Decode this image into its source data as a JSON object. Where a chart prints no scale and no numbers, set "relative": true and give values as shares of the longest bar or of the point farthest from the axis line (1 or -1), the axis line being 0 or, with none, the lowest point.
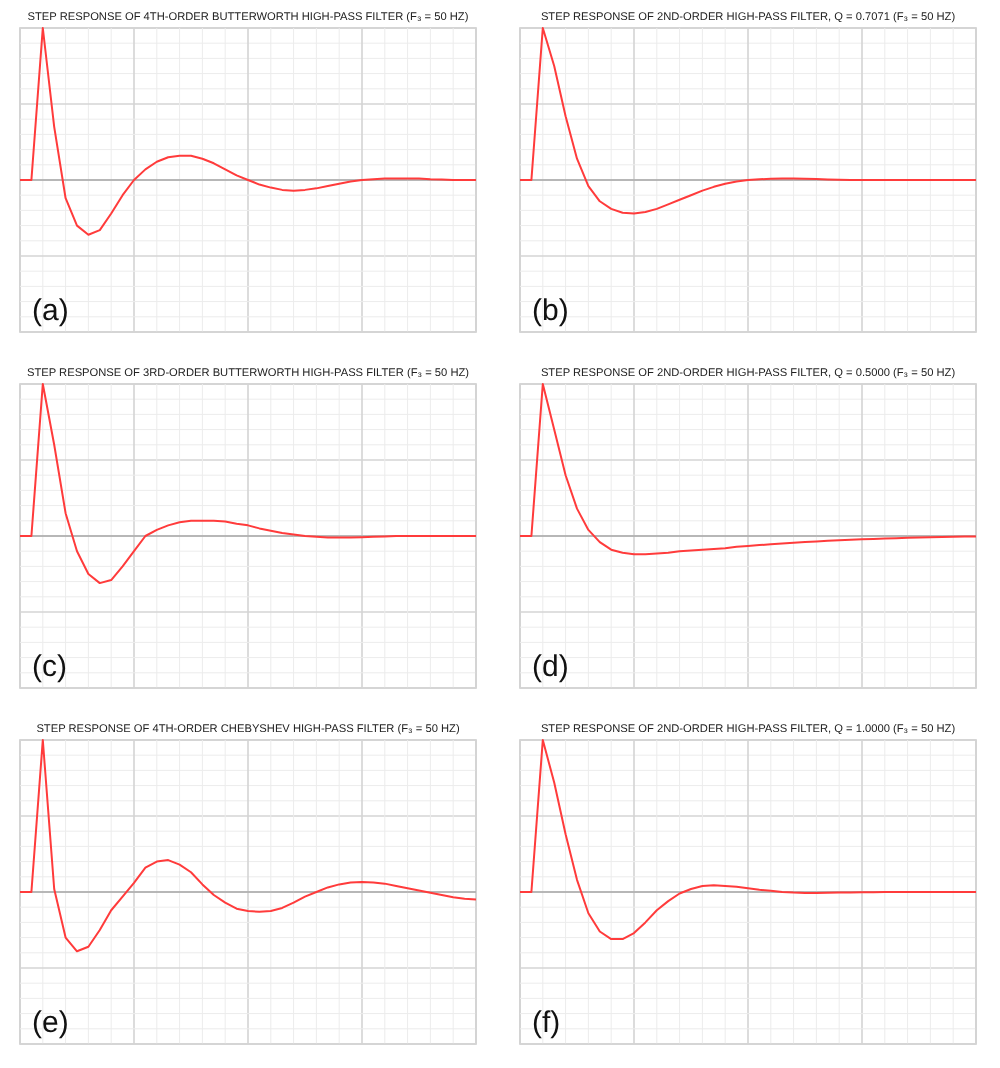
{
  "chart_data": [
    {
      "type": "line",
      "relative": true,
      "title": "STEP RESPONSE OF 4TH-ORDER BUTTERWORTH HIGH-PASS FILTER (F₃ = 50 HZ)",
      "annotations": [
        "(a)"
      ],
      "grid": true,
      "marker": "none",
      "line_style": "solid",
      "categories": [
        null,
        null,
        null,
        null,
        null,
        null,
        null,
        null,
        null,
        null,
        null,
        null,
        null,
        null,
        null,
        null,
        null,
        null,
        null,
        null,
        null,
        null,
        null,
        null,
        null,
        null,
        null,
        null,
        null,
        null,
        null,
        null,
        null,
        null,
        null,
        null,
        null,
        null,
        null,
        null,
        null
      ],
      "series": [
        {
          "color": "#ff3b3b",
          "values": [
            0,
            0,
            1,
            0.35,
            -0.12,
            -0.3,
            -0.36,
            -0.33,
            -0.22,
            -0.1,
            0,
            0.07,
            0.12,
            0.15,
            0.16,
            0.16,
            0.14,
            0.11,
            0.07,
            0.03,
            0,
            -0.03,
            -0.05,
            -0.065,
            -0.07,
            -0.065,
            -0.055,
            -0.04,
            -0.025,
            -0.01,
            0,
            0.005,
            0.01,
            0.01,
            0.01,
            0.01,
            0.005,
            0.003,
            0,
            0,
            0
          ]
        }
      ]
    },
    {
      "type": "line",
      "relative": true,
      "title": "STEP RESPONSE OF 2ND-ORDER HIGH-PASS FILTER, Q = 0.7071 (F₃ = 50 HZ)",
      "annotations": [
        "(b)"
      ],
      "grid": true,
      "marker": "none",
      "line_style": "solid",
      "categories": [
        null,
        null,
        null,
        null,
        null,
        null,
        null,
        null,
        null,
        null,
        null,
        null,
        null,
        null,
        null,
        null,
        null,
        null,
        null,
        null,
        null,
        null,
        null,
        null,
        null,
        null,
        null,
        null,
        null,
        null,
        null,
        null,
        null,
        null,
        null,
        null,
        null,
        null,
        null,
        null,
        null
      ],
      "series": [
        {
          "color": "#ff3b3b",
          "values": [
            0,
            0,
            1,
            0.75,
            0.42,
            0.14,
            -0.04,
            -0.14,
            -0.19,
            -0.215,
            -0.22,
            -0.21,
            -0.19,
            -0.16,
            -0.13,
            -0.1,
            -0.07,
            -0.045,
            -0.025,
            -0.01,
            0,
            0.005,
            0.008,
            0.01,
            0.01,
            0.008,
            0.006,
            0.004,
            0.002,
            0,
            0,
            0,
            0,
            0,
            0,
            0,
            0,
            0,
            0,
            0,
            0
          ]
        }
      ]
    },
    {
      "type": "line",
      "relative": true,
      "title": "STEP RESPONSE OF 3RD-ORDER BUTTERWORTH HIGH-PASS FILTER (F₃ = 50 HZ)",
      "annotations": [
        "(c)"
      ],
      "grid": true,
      "marker": "none",
      "line_style": "solid",
      "categories": [
        null,
        null,
        null,
        null,
        null,
        null,
        null,
        null,
        null,
        null,
        null,
        null,
        null,
        null,
        null,
        null,
        null,
        null,
        null,
        null,
        null,
        null,
        null,
        null,
        null,
        null,
        null,
        null,
        null,
        null,
        null,
        null,
        null,
        null,
        null,
        null,
        null,
        null,
        null,
        null,
        null
      ],
      "series": [
        {
          "color": "#ff3b3b",
          "values": [
            0,
            0,
            1,
            0.6,
            0.15,
            -0.1,
            -0.25,
            -0.31,
            -0.29,
            -0.2,
            -0.1,
            0,
            0.04,
            0.07,
            0.09,
            0.1,
            0.1,
            0.1,
            0.095,
            0.08,
            0.07,
            0.05,
            0.035,
            0.02,
            0.01,
            0,
            -0.005,
            -0.01,
            -0.01,
            -0.01,
            -0.008,
            -0.005,
            -0.003,
            0,
            0,
            0,
            0,
            0,
            0,
            0,
            0
          ]
        }
      ]
    },
    {
      "type": "line",
      "relative": true,
      "title": "STEP RESPONSE OF 2ND-ORDER HIGH-PASS FILTER, Q = 0.5000 (F₃ = 50 HZ)",
      "annotations": [
        "(d)"
      ],
      "grid": true,
      "marker": "none",
      "line_style": "solid",
      "categories": [
        null,
        null,
        null,
        null,
        null,
        null,
        null,
        null,
        null,
        null,
        null,
        null,
        null,
        null,
        null,
        null,
        null,
        null,
        null,
        null,
        null,
        null,
        null,
        null,
        null,
        null,
        null,
        null,
        null,
        null,
        null,
        null,
        null,
        null,
        null,
        null,
        null,
        null,
        null,
        null,
        null
      ],
      "series": [
        {
          "color": "#ff3b3b",
          "values": [
            0,
            0,
            1,
            0.7,
            0.4,
            0.18,
            0.04,
            -0.04,
            -0.09,
            -0.11,
            -0.12,
            -0.12,
            -0.115,
            -0.11,
            -0.1,
            -0.095,
            -0.09,
            -0.085,
            -0.08,
            -0.07,
            -0.065,
            -0.06,
            -0.055,
            -0.05,
            -0.045,
            -0.04,
            -0.036,
            -0.032,
            -0.028,
            -0.025,
            -0.022,
            -0.019,
            -0.016,
            -0.014,
            -0.012,
            -0.01,
            -0.008,
            -0.006,
            -0.005,
            -0.004,
            -0.003
          ]
        }
      ]
    },
    {
      "type": "line",
      "relative": true,
      "title": "STEP RESPONSE OF 4TH-ORDER CHEBYSHEV HIGH-PASS FILTER (F₃ = 50 HZ)",
      "annotations": [
        "(e)"
      ],
      "grid": true,
      "marker": "none",
      "line_style": "solid",
      "categories": [
        null,
        null,
        null,
        null,
        null,
        null,
        null,
        null,
        null,
        null,
        null,
        null,
        null,
        null,
        null,
        null,
        null,
        null,
        null,
        null,
        null,
        null,
        null,
        null,
        null,
        null,
        null,
        null,
        null,
        null,
        null,
        null,
        null,
        null,
        null,
        null,
        null,
        null,
        null,
        null,
        null
      ],
      "series": [
        {
          "color": "#ff3b3b",
          "values": [
            0,
            0,
            1,
            0.02,
            -0.3,
            -0.39,
            -0.36,
            -0.25,
            -0.12,
            -0.03,
            0.06,
            0.16,
            0.2,
            0.21,
            0.18,
            0.13,
            0.05,
            -0.02,
            -0.07,
            -0.11,
            -0.125,
            -0.13,
            -0.125,
            -0.105,
            -0.07,
            -0.03,
            0,
            0.03,
            0.05,
            0.062,
            0.066,
            0.063,
            0.055,
            0.04,
            0.025,
            0.01,
            -0.005,
            -0.02,
            -0.035,
            -0.045,
            -0.05
          ]
        }
      ]
    },
    {
      "type": "line",
      "relative": true,
      "title": "STEP RESPONSE OF 2ND-ORDER HIGH-PASS FILTER, Q = 1.0000 (F₃ = 50 HZ)",
      "annotations": [
        "(f)"
      ],
      "grid": true,
      "marker": "none",
      "line_style": "solid",
      "categories": [
        null,
        null,
        null,
        null,
        null,
        null,
        null,
        null,
        null,
        null,
        null,
        null,
        null,
        null,
        null,
        null,
        null,
        null,
        null,
        null,
        null,
        null,
        null,
        null,
        null,
        null,
        null,
        null,
        null,
        null,
        null,
        null,
        null,
        null,
        null,
        null,
        null,
        null,
        null,
        null,
        null
      ],
      "series": [
        {
          "color": "#ff3b3b",
          "values": [
            0,
            0,
            1,
            0.72,
            0.38,
            0.08,
            -0.14,
            -0.26,
            -0.31,
            -0.31,
            -0.27,
            -0.2,
            -0.12,
            -0.06,
            -0.01,
            0.02,
            0.04,
            0.045,
            0.04,
            0.035,
            0.025,
            0.015,
            0.008,
            0,
            -0.004,
            -0.006,
            -0.006,
            -0.005,
            -0.004,
            -0.003,
            -0.002,
            -0.001,
            0,
            0,
            0,
            0,
            0,
            0,
            0,
            0,
            0
          ]
        }
      ]
    }
  ]
}
